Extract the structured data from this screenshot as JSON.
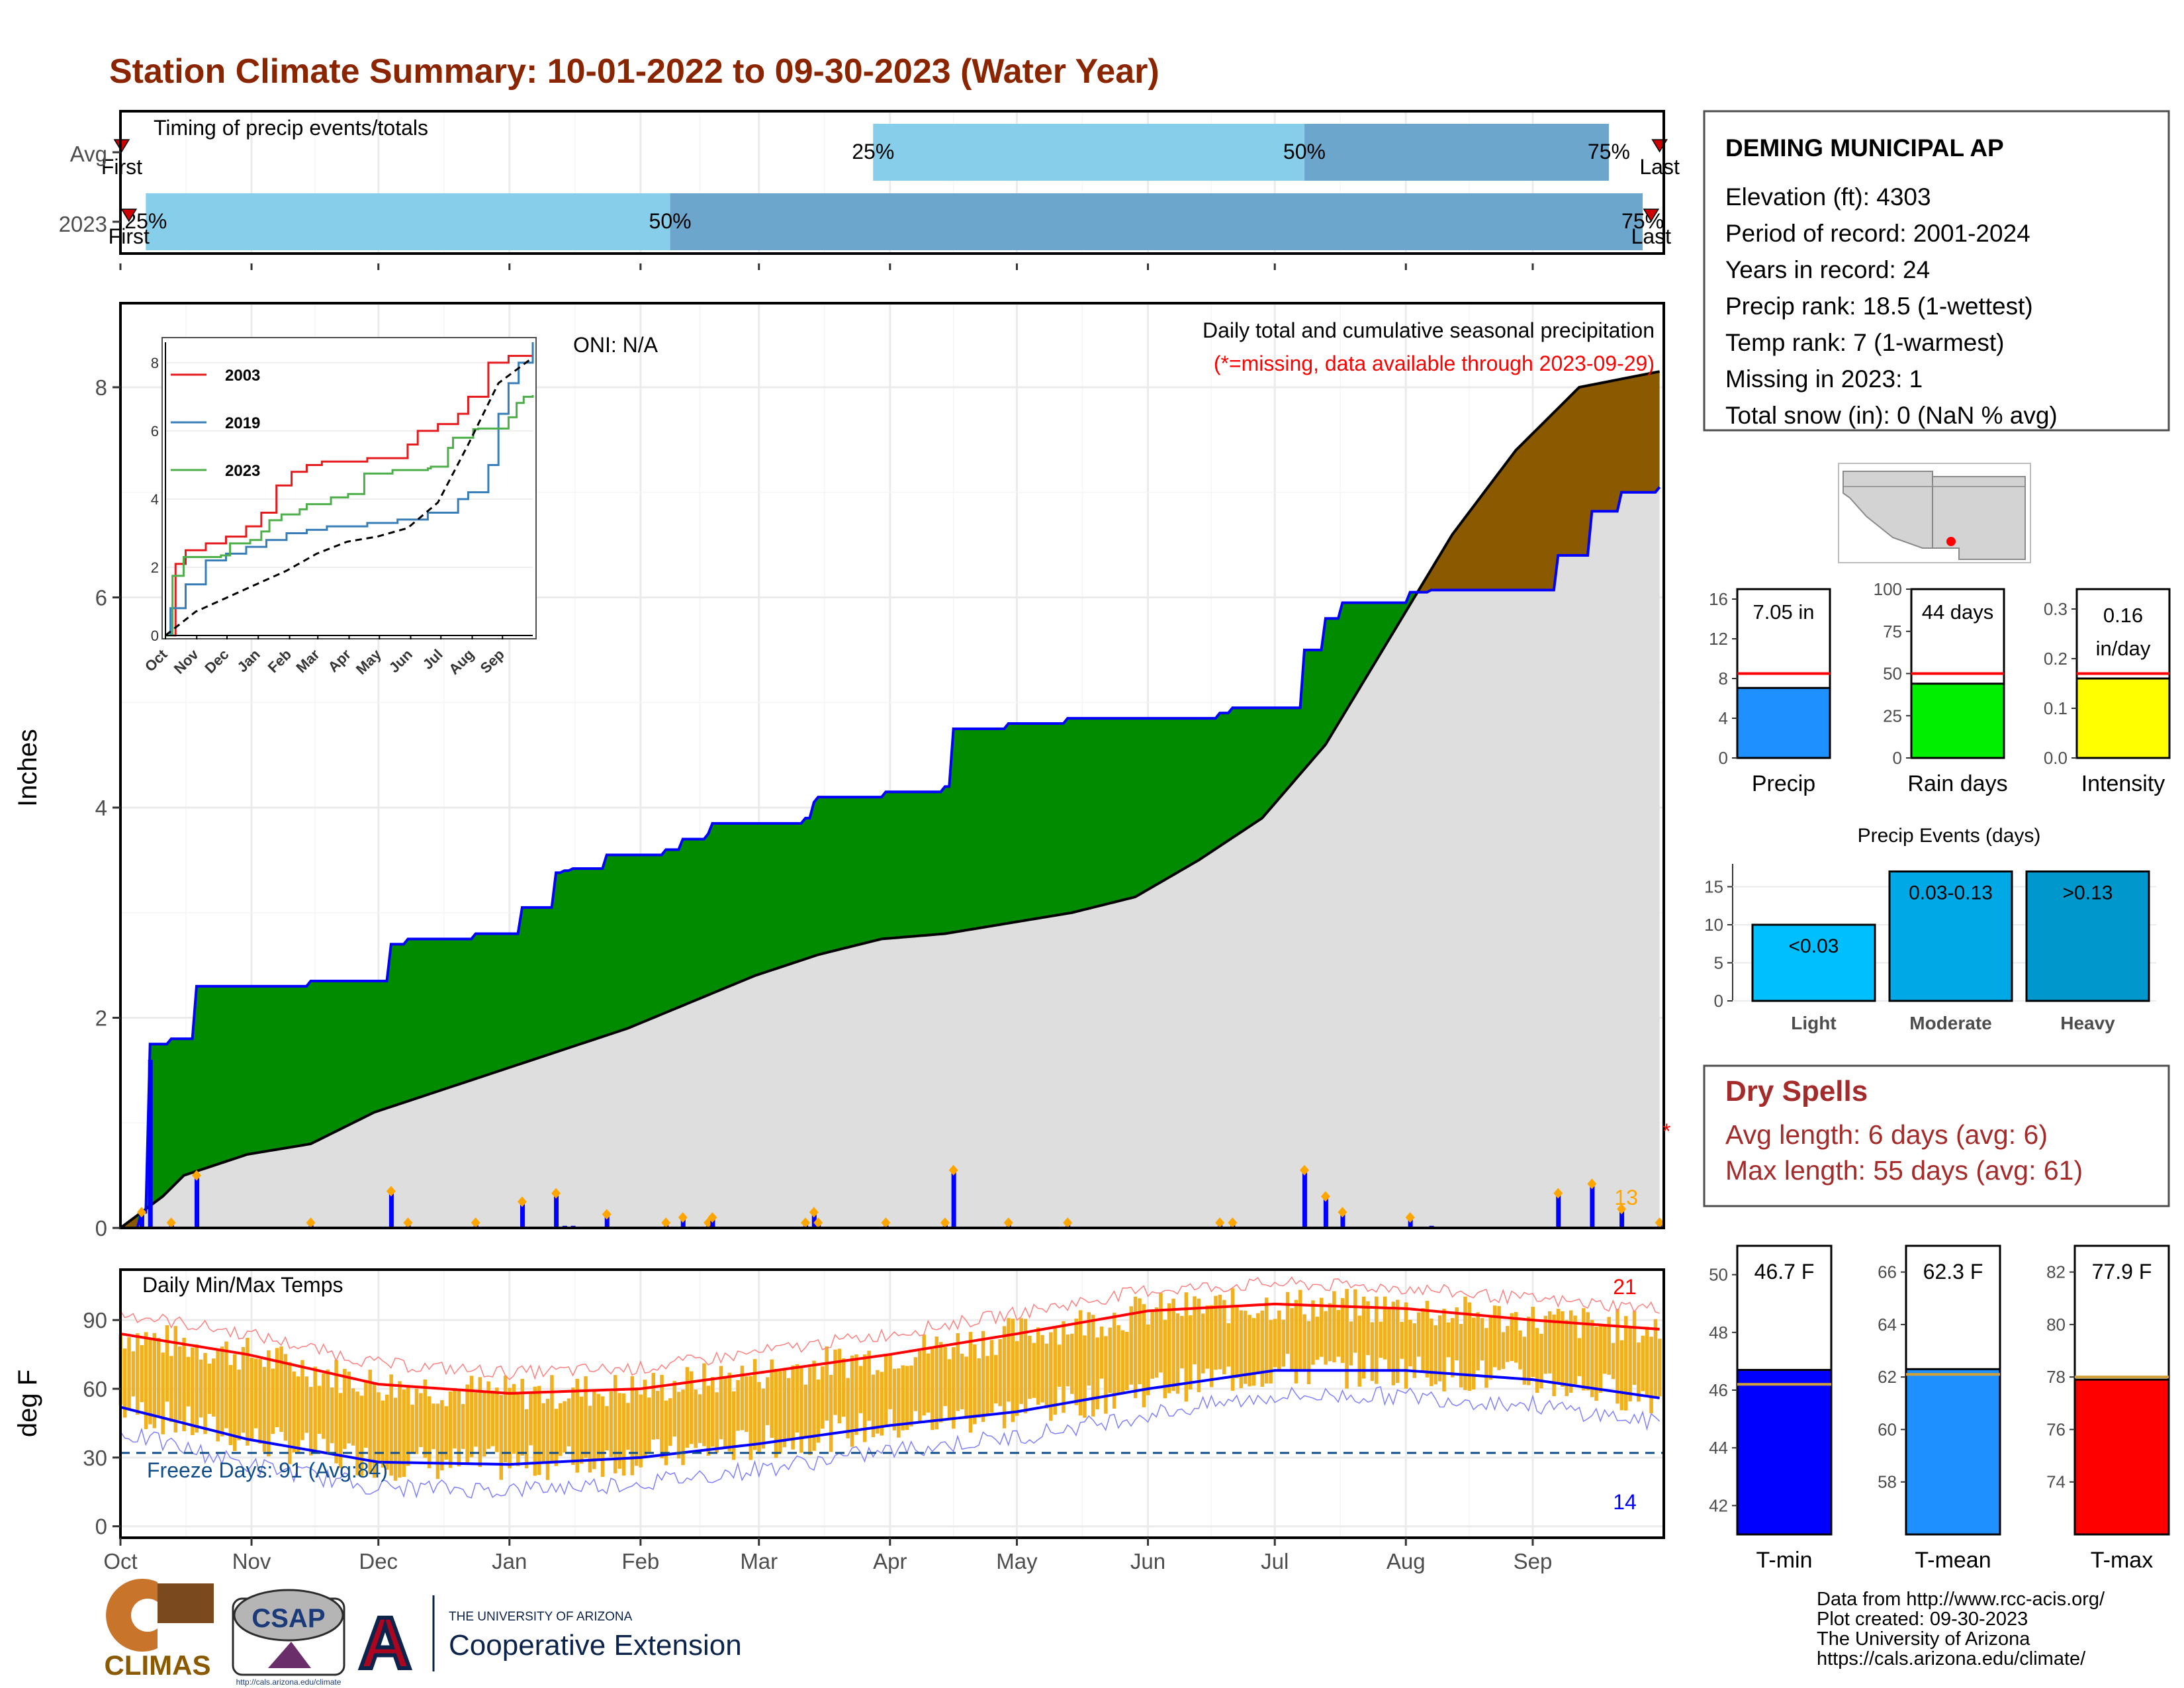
{
  "title": "Station Climate Summary: 10-01-2022 to 09-30-2023 (Water Year)",
  "timing": {
    "label": "Timing of precip events/totals",
    "rows": [
      {
        "name": "Avg",
        "first_label": "First",
        "last_label": "Last",
        "first": 0.3,
        "last": 364,
        "pct25": 178,
        "pct50": 280,
        "pct75": 352,
        "pct25_label": "25%",
        "pct50_label": "50%",
        "pct75_label": "75%"
      },
      {
        "name": "2023",
        "first_label": "First",
        "last_label": "Last",
        "first": 2,
        "last": 362,
        "pct25": 6,
        "pct50": 130,
        "pct75": 360,
        "pct25_label": "25%",
        "pct50_label": "50%",
        "pct75_label": "75%"
      }
    ]
  },
  "precip_panel": {
    "ylabel": "Inches",
    "annotation": "Daily total and cumulative seasonal precipitation",
    "missing_note": "(*=missing, data available through 2023-09-29)",
    "oni": "ONI: N/A",
    "count_label": "13",
    "missing_marker": "*",
    "y_ticks": [
      "0",
      "2",
      "4",
      "6",
      "8"
    ]
  },
  "inset": {
    "series_names": [
      "2003",
      "2019",
      "2023"
    ],
    "y_ticks": [
      "0",
      "2",
      "4",
      "6",
      "8"
    ],
    "x_ticks": [
      "Oct",
      "Nov",
      "Dec",
      "Jan",
      "Feb",
      "Mar",
      "Apr",
      "May",
      "Jun",
      "Jul",
      "Aug",
      "Sep"
    ]
  },
  "temp_panel": {
    "ylabel": "deg F",
    "title": "Daily Min/Max Temps",
    "freeze_label": "Freeze Days: 91 (Avg:84)",
    "hot_count": "21",
    "cold_count": "14",
    "y_ticks": [
      "0",
      "30",
      "60",
      "90"
    ]
  },
  "months": [
    "Oct",
    "Nov",
    "Dec",
    "Jan",
    "Feb",
    "Mar",
    "Apr",
    "May",
    "Jun",
    "Jul",
    "Aug",
    "Sep"
  ],
  "station": {
    "name": "DEMING MUNICIPAL AP",
    "lines": [
      "Elevation (ft): 4303",
      "Period of record: 2001-2024",
      "Years in record: 24",
      "Precip rank: 18.5 (1-wettest)",
      "Temp rank: 7 (1-warmest)",
      "Missing in 2023: 1",
      "Total snow (in): 0 (NaN % avg)"
    ]
  },
  "mini_bars": [
    {
      "label": "Precip",
      "value_text": "7.05 in",
      "value": 7.05,
      "avg": 8.5,
      "ymax": 17,
      "ticks": [
        "0",
        "4",
        "8",
        "12",
        "16"
      ],
      "tick_values": [
        0,
        4,
        8,
        12,
        16
      ],
      "color": "#1e90ff"
    },
    {
      "label": "Rain days",
      "value_text": "44 days",
      "value": 44,
      "avg": 50,
      "ymax": 100,
      "ticks": [
        "0",
        "25",
        "50",
        "75",
        "100"
      ],
      "tick_values": [
        0,
        25,
        50,
        75,
        100
      ],
      "color": "#00ee00"
    },
    {
      "label": "Intensity",
      "value_text": "0.16 in/day",
      "value_line1": "0.16",
      "value_line2": "in/day",
      "value": 0.16,
      "avg": 0.17,
      "ymax": 0.34,
      "ticks": [
        "0.0",
        "0.1",
        "0.2",
        "0.3"
      ],
      "tick_values": [
        0,
        0.1,
        0.2,
        0.3
      ],
      "color": "#ffff00"
    }
  ],
  "events": {
    "title": "Precip Events (days)",
    "categories": [
      "Light",
      "Moderate",
      "Heavy"
    ],
    "labels": [
      "<0.03",
      "0.03-0.13",
      ">0.13"
    ],
    "values": [
      10,
      17,
      17
    ],
    "ticks": [
      "0",
      "5",
      "10",
      "15"
    ],
    "colors": [
      "#00bfff",
      "#00a9e6",
      "#0098cc"
    ]
  },
  "dry_spells": {
    "title": "Dry Spells",
    "avg_line": "Avg length: 6 days (avg: 6)",
    "max_line": "Max length: 55 days (avg: 61)"
  },
  "temp_bars": [
    {
      "label": "T-min",
      "value_text": "46.7 F",
      "value": 46.7,
      "avg": 46.2,
      "ymin": 41,
      "ymax": 51,
      "ticks": [
        "42",
        "44",
        "46",
        "48",
        "50"
      ],
      "tick_values": [
        42,
        44,
        46,
        48,
        50
      ],
      "color": "#0000ff"
    },
    {
      "label": "T-mean",
      "value_text": "62.3 F",
      "value": 62.3,
      "avg": 62.1,
      "ymin": 56,
      "ymax": 67,
      "ticks": [
        "58",
        "60",
        "62",
        "64",
        "66"
      ],
      "tick_values": [
        58,
        60,
        62,
        64,
        66
      ],
      "color": "#1e90ff"
    },
    {
      "label": "T-max",
      "value_text": "77.9 F",
      "value": 77.9,
      "avg": 78.0,
      "ymin": 72,
      "ymax": 83,
      "ticks": [
        "74",
        "76",
        "78",
        "80",
        "82"
      ],
      "tick_values": [
        74,
        76,
        78,
        80,
        82
      ],
      "color": "#ff0000"
    }
  ],
  "footer": {
    "lines": [
      "Data from http://www.rcc-acis.org/",
      "Plot created: 09-30-2023",
      "The University of Arizona",
      "https://cals.arizona.edu/climate/"
    ],
    "logo_climas": "CLIMAS",
    "logo_csap": "CSAP",
    "logo_csap_url": "http://cals.arizona.edu/climate",
    "logo_ua_small": "THE UNIVERSITY OF ARIZONA",
    "logo_ua_big": "Cooperative Extension",
    "logo_ua_letter": "A"
  },
  "colors": {
    "title": "#8b2500",
    "above_avg": "#008b00",
    "below_avg": "#8b5a00",
    "avg_fill": "#dedede",
    "daily_bar": "#0000ff",
    "event_marker": "#ffa500",
    "tmax": "#ff0000",
    "tmin": "#0000ff",
    "range": "#f0b020",
    "dry_spells": "#a52a2a"
  },
  "chart_data": [
    {
      "type": "area",
      "title": "Daily total and cumulative seasonal precipitation",
      "ylabel": "Inches",
      "ylim": [
        0,
        8.8
      ],
      "series": [
        {
          "name": "2023",
          "x": [
            0,
            5,
            7,
            12,
            18,
            45,
            55,
            62,
            64,
            68,
            75,
            84,
            95,
            103,
            105,
            107,
            108,
            115,
            129,
            133,
            139,
            140,
            162,
            164,
            165,
            180,
            181,
            195,
            197,
            210,
            224,
            225,
            226,
            227,
            234,
            238,
            250,
            260,
            263,
            280,
            285,
            289,
            305,
            307,
            310,
            340,
            348,
            355,
            364
          ],
          "values": [
            0,
            0.15,
            1.75,
            1.8,
            2.3,
            2.35,
            2.35,
            2.35,
            2.7,
            2.75,
            2.75,
            2.8,
            3.05,
            3.38,
            3.4,
            3.42,
            3.42,
            3.55,
            3.6,
            3.7,
            3.75,
            3.85,
            3.9,
            4.05,
            4.1,
            4.1,
            4.15,
            4.2,
            4.75,
            4.8,
            4.85,
            4.85,
            4.85,
            4.85,
            4.85,
            4.85,
            4.85,
            4.9,
            4.95,
            5.5,
            5.8,
            5.95,
            6.05,
            6.05,
            6.07,
            6.4,
            6.82,
            7.0,
            7.05
          ]
        },
        {
          "name": "Average",
          "x": [
            0,
            10,
            15,
            30,
            45,
            60,
            75,
            90,
            105,
            120,
            135,
            150,
            165,
            180,
            195,
            210,
            225,
            240,
            255,
            270,
            285,
            300,
            315,
            330,
            345,
            364
          ],
          "values": [
            0,
            0.3,
            0.5,
            0.7,
            0.8,
            1.1,
            1.3,
            1.5,
            1.7,
            1.9,
            2.15,
            2.4,
            2.6,
            2.75,
            2.8,
            2.9,
            3.0,
            3.15,
            3.5,
            3.9,
            4.6,
            5.6,
            6.6,
            7.4,
            8.0,
            8.15
          ]
        }
      ]
    },
    {
      "type": "line",
      "title": "",
      "series_names_printed": [
        "2003",
        "2019",
        "2023"
      ],
      "ylim": [
        0,
        8.6
      ],
      "series": [
        {
          "name": "2003",
          "x": [
            0,
            10,
            20,
            40,
            60,
            80,
            95,
            110,
            125,
            140,
            155,
            175,
            200,
            225,
            240,
            250,
            270,
            290,
            300,
            320,
            340,
            364
          ],
          "values": [
            0,
            2.1,
            2.5,
            2.7,
            2.9,
            3.2,
            3.6,
            4.4,
            4.8,
            5.0,
            5.1,
            5.1,
            5.2,
            5.2,
            5.6,
            6.0,
            6.2,
            6.5,
            7.0,
            8.0,
            8.2,
            8.2
          ]
        },
        {
          "name": "2019",
          "x": [
            0,
            5,
            20,
            40,
            60,
            80,
            100,
            120,
            140,
            160,
            200,
            230,
            260,
            290,
            300,
            320,
            330,
            340,
            350,
            364
          ],
          "values": [
            0,
            0.8,
            1.5,
            2.2,
            2.4,
            2.6,
            2.8,
            3.0,
            3.1,
            3.2,
            3.3,
            3.4,
            3.6,
            4.0,
            4.2,
            5.0,
            6.5,
            7.4,
            8.0,
            8.6
          ]
        },
        {
          "name": "2023",
          "x": [
            0,
            7,
            18,
            55,
            64,
            84,
            95,
            103,
            115,
            133,
            140,
            164,
            181,
            197,
            225,
            260,
            263,
            280,
            285,
            305,
            310,
            340,
            348,
            355,
            364
          ],
          "values": [
            0,
            1.75,
            2.3,
            2.35,
            2.7,
            2.8,
            3.05,
            3.38,
            3.55,
            3.7,
            3.85,
            4.05,
            4.15,
            4.75,
            4.85,
            4.9,
            4.95,
            5.5,
            5.8,
            6.05,
            6.07,
            6.4,
            6.82,
            7.0,
            7.05
          ]
        },
        {
          "name": "Average",
          "x": [
            0,
            30,
            60,
            90,
            120,
            150,
            180,
            210,
            240,
            270,
            300,
            330,
            364
          ],
          "values": [
            0,
            0.7,
            1.1,
            1.5,
            1.9,
            2.4,
            2.75,
            2.9,
            3.15,
            3.9,
            5.6,
            7.4,
            8.15
          ]
        }
      ]
    },
    {
      "type": "line",
      "title": "Daily Min/Max Temps",
      "ylabel": "deg F",
      "ylim": [
        -5,
        112
      ],
      "x": [
        0,
        30,
        61,
        92,
        123,
        151,
        182,
        212,
        243,
        273,
        304,
        334,
        364
      ],
      "series": [
        {
          "name": "Avg max",
          "values": [
            84,
            75,
            62,
            58,
            60,
            67,
            75,
            84,
            94,
            97,
            95,
            90,
            86
          ]
        },
        {
          "name": "Avg min",
          "values": [
            52,
            38,
            28,
            27,
            30,
            36,
            44,
            50,
            60,
            68,
            68,
            64,
            56
          ]
        }
      ]
    },
    {
      "type": "bar",
      "title": "Precip Events (days)",
      "categories": [
        "Light",
        "Moderate",
        "Heavy"
      ],
      "values": [
        10,
        17,
        17
      ]
    }
  ]
}
